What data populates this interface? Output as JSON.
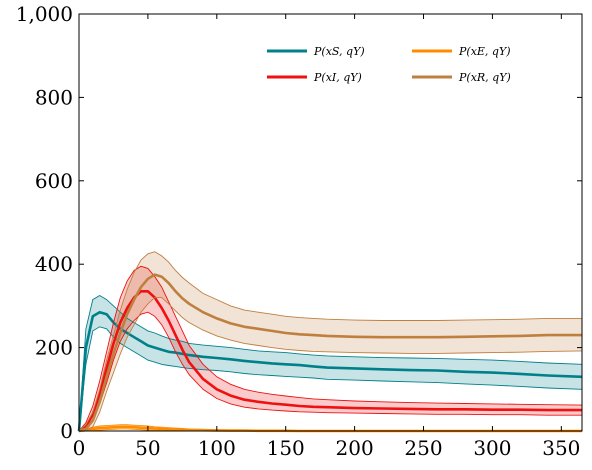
{
  "chart_data": {
    "type": "line",
    "title": "",
    "xlabel": "",
    "ylabel": "",
    "xlim": [
      0,
      365
    ],
    "ylim": [
      0,
      1000
    ],
    "x_ticks": [
      0,
      50,
      100,
      150,
      200,
      250,
      300,
      350
    ],
    "y_ticks": [
      0,
      200,
      400,
      600,
      800,
      1000
    ],
    "x_tick_labels": [
      "0",
      "50",
      "100",
      "150",
      "200",
      "250",
      "300",
      "350"
    ],
    "y_tick_labels": [
      "0",
      "200",
      "400",
      "600",
      "800",
      "1,000"
    ],
    "grid": false,
    "legend_position": "top-right",
    "x": [
      0,
      5,
      10,
      15,
      20,
      25,
      30,
      35,
      40,
      45,
      50,
      55,
      60,
      65,
      70,
      75,
      80,
      90,
      100,
      110,
      120,
      130,
      140,
      150,
      160,
      170,
      180,
      200,
      220,
      240,
      260,
      280,
      300,
      320,
      340,
      365
    ],
    "series": [
      {
        "name": "P(x_S, q_Y)",
        "color": "#00808a",
        "mean": [
          0,
          200,
          275,
          285,
          280,
          260,
          245,
          235,
          225,
          215,
          205,
          200,
          195,
          190,
          188,
          185,
          182,
          178,
          175,
          172,
          168,
          165,
          162,
          160,
          158,
          155,
          152,
          150,
          148,
          146,
          145,
          142,
          140,
          137,
          133,
          130
        ],
        "upper": [
          0,
          245,
          315,
          325,
          315,
          300,
          285,
          270,
          260,
          250,
          240,
          235,
          228,
          222,
          218,
          215,
          210,
          206,
          203,
          200,
          196,
          192,
          190,
          188,
          185,
          182,
          180,
          178,
          176,
          175,
          174,
          172,
          170,
          167,
          163,
          160
        ],
        "lower": [
          0,
          160,
          240,
          250,
          245,
          225,
          210,
          200,
          190,
          180,
          170,
          165,
          160,
          157,
          155,
          152,
          150,
          147,
          145,
          142,
          138,
          135,
          133,
          131,
          129,
          127,
          124,
          122,
          120,
          118,
          116,
          113,
          110,
          107,
          103,
          100
        ]
      },
      {
        "name": "P(x_E, q_Y)",
        "color": "#ff8c00",
        "mean": [
          0,
          2,
          5,
          7,
          8,
          9,
          10,
          10,
          9,
          8,
          7,
          6,
          5,
          4,
          3.5,
          3,
          2.5,
          2,
          1.5,
          1,
          1,
          0.5,
          0.5,
          0.5,
          0,
          0,
          0,
          0,
          0,
          0,
          0,
          0,
          0,
          0,
          0,
          0
        ],
        "upper": [
          0,
          5,
          9,
          12,
          13,
          14,
          15,
          15,
          14,
          13,
          12,
          10,
          9,
          8,
          7,
          6,
          5,
          4,
          3,
          2.5,
          2,
          2,
          1.5,
          1.5,
          1,
          1,
          1,
          1,
          1,
          1,
          1,
          1,
          1,
          1,
          1,
          1
        ],
        "lower": [
          0,
          0,
          1,
          2,
          3,
          4,
          5,
          5,
          4,
          3,
          2,
          2,
          1,
          1,
          0.5,
          0.5,
          0,
          0,
          0,
          0,
          0,
          0,
          0,
          0,
          0,
          0,
          0,
          0,
          0,
          0,
          0,
          0,
          0,
          0,
          0,
          0
        ]
      },
      {
        "name": "P(x_I, q_Y)",
        "color": "#ee1111",
        "mean": [
          0,
          10,
          40,
          90,
          150,
          210,
          260,
          295,
          320,
          335,
          335,
          320,
          295,
          265,
          230,
          195,
          165,
          125,
          100,
          85,
          75,
          70,
          66,
          63,
          60,
          58,
          57,
          55,
          54,
          53,
          52,
          52,
          51,
          51,
          50,
          50
        ],
        "upper": [
          0,
          20,
          60,
          120,
          190,
          260,
          320,
          360,
          385,
          395,
          390,
          370,
          345,
          310,
          275,
          240,
          205,
          160,
          130,
          112,
          100,
          93,
          88,
          84,
          80,
          77,
          75,
          72,
          70,
          68,
          67,
          66,
          65,
          64,
          63,
          62
        ],
        "lower": [
          0,
          4,
          25,
          65,
          115,
          170,
          215,
          245,
          265,
          280,
          285,
          275,
          255,
          225,
          190,
          160,
          135,
          100,
          78,
          65,
          57,
          53,
          50,
          48,
          46,
          45,
          44,
          43,
          42,
          41,
          40,
          40,
          39,
          39,
          38,
          38
        ]
      },
      {
        "name": "P(x_R, q_Y)",
        "color": "#bf7f3f",
        "mean": [
          0,
          5,
          25,
          70,
          130,
          185,
          235,
          280,
          315,
          345,
          365,
          375,
          370,
          355,
          335,
          318,
          305,
          285,
          270,
          258,
          250,
          245,
          240,
          235,
          232,
          230,
          228,
          226,
          225,
          225,
          225,
          226,
          227,
          228,
          230,
          230
        ],
        "upper": [
          0,
          15,
          45,
          100,
          170,
          230,
          290,
          340,
          380,
          410,
          425,
          430,
          420,
          405,
          385,
          368,
          355,
          330,
          315,
          300,
          290,
          285,
          280,
          275,
          272,
          270,
          268,
          266,
          265,
          265,
          265,
          266,
          267,
          268,
          270,
          270
        ],
        "lower": [
          0,
          0,
          10,
          45,
          95,
          140,
          185,
          225,
          255,
          285,
          305,
          320,
          320,
          305,
          288,
          272,
          260,
          242,
          228,
          218,
          210,
          205,
          200,
          196,
          193,
          191,
          190,
          188,
          187,
          186,
          186,
          187,
          188,
          189,
          191,
          192
        ]
      }
    ],
    "legend": [
      {
        "label": "P(xS, qY)",
        "color": "#00808a"
      },
      {
        "label": "P(xE, qY)",
        "color": "#ff8c00"
      },
      {
        "label": "P(xI, qY)",
        "color": "#ee1111"
      },
      {
        "label": "P(xR, qY)",
        "color": "#bf7f3f"
      }
    ]
  }
}
